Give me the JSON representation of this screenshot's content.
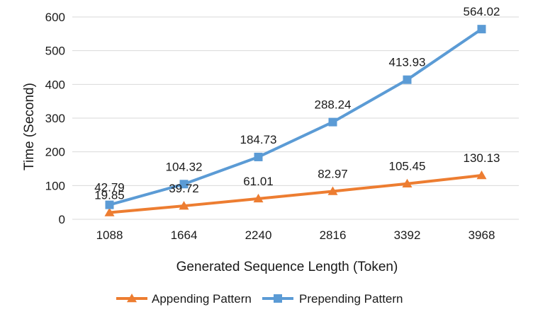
{
  "chart_data": {
    "type": "line",
    "title": "",
    "xlabel": "Generated Sequence Length (Token)",
    "ylabel": "Time (Second)",
    "categories": [
      "1088",
      "1664",
      "2240",
      "2816",
      "3392",
      "3968"
    ],
    "ylim": [
      0,
      600
    ],
    "yticks": [
      0,
      100,
      200,
      300,
      400,
      500,
      600
    ],
    "grid": true,
    "legend_position": "bottom",
    "series": [
      {
        "name": "Appending Pattern",
        "color": "#ED7D31",
        "marker": "triangle",
        "values": [
          19.85,
          39.72,
          61.01,
          82.97,
          105.45,
          130.13
        ],
        "labels": [
          "19.85",
          "39.72",
          "61.01",
          "82.97",
          "105.45",
          "130.13"
        ]
      },
      {
        "name": "Prepending Pattern",
        "color": "#5B9BD5",
        "marker": "square",
        "values": [
          42.79,
          104.32,
          184.73,
          288.24,
          413.93,
          564.02
        ],
        "labels": [
          "42.79",
          "104.32",
          "184.73",
          "288.24",
          "413.93",
          "564.02"
        ]
      }
    ]
  }
}
